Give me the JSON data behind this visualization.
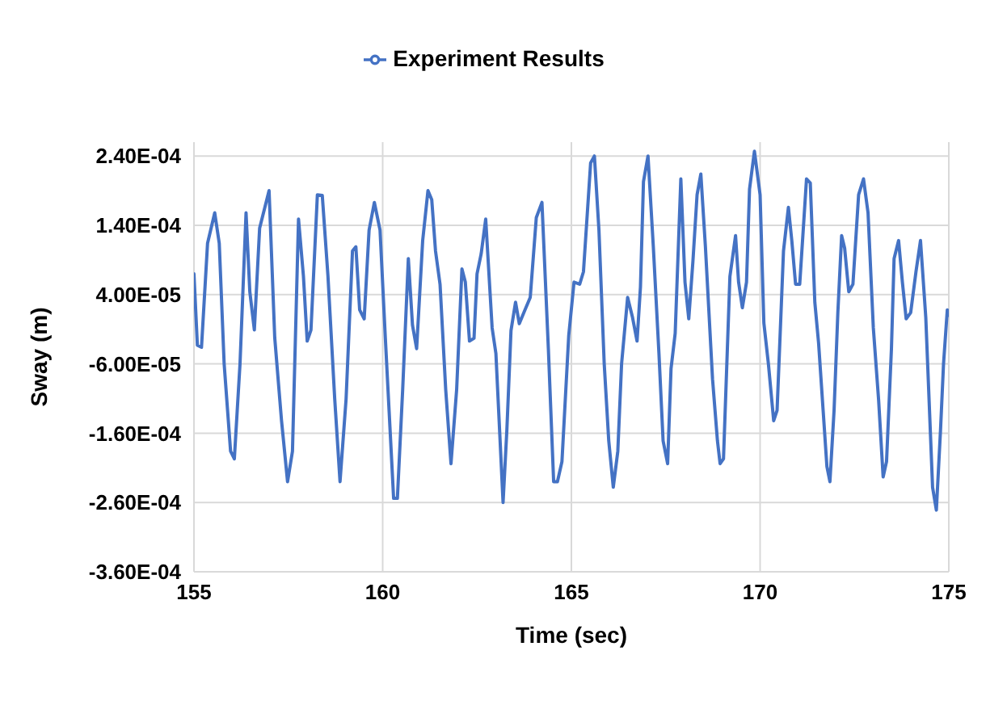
{
  "chart_data": {
    "type": "line",
    "xlabel": "Time (sec)",
    "ylabel": "Sway (m)",
    "xlim": [
      155,
      175
    ],
    "xticks": [
      155,
      160,
      165,
      170,
      175
    ],
    "ylim": [
      -0.00036,
      0.00026
    ],
    "yticks": [
      {
        "value": -0.00036,
        "label": "-3.60E-04"
      },
      {
        "value": -0.00026,
        "label": "-2.60E-04"
      },
      {
        "value": -0.00016,
        "label": "-1.60E-04"
      },
      {
        "value": -6e-05,
        "label": "-6.00E-05"
      },
      {
        "value": 4e-05,
        "label": "4.00E-05"
      },
      {
        "value": 0.00014,
        "label": "1.40E-04"
      },
      {
        "value": 0.00024,
        "label": "2.40E-04"
      }
    ],
    "grid": true,
    "legend": "top",
    "marker": "none",
    "line_style": "solid",
    "series": [
      {
        "name": "Experiment Results",
        "color": "#4472c4",
        "x": [
          155.0,
          155.09,
          155.2,
          155.36,
          155.55,
          155.67,
          155.8,
          155.97,
          156.07,
          156.22,
          156.38,
          156.48,
          156.6,
          156.74,
          156.99,
          157.14,
          157.32,
          157.48,
          157.61,
          157.77,
          157.9,
          158.0,
          158.1,
          158.27,
          158.4,
          158.55,
          158.73,
          158.87,
          159.03,
          159.2,
          159.29,
          159.39,
          159.51,
          159.64,
          159.78,
          159.93,
          160.07,
          160.29,
          160.39,
          160.53,
          160.68,
          160.79,
          160.9,
          161.06,
          161.2,
          161.3,
          161.4,
          161.52,
          161.67,
          161.81,
          161.96,
          162.1,
          162.19,
          162.3,
          162.42,
          162.5,
          162.61,
          162.73,
          162.9,
          163.0,
          163.19,
          163.29,
          163.4,
          163.52,
          163.62,
          163.77,
          163.91,
          164.07,
          164.22,
          164.39,
          164.53,
          164.63,
          164.75,
          164.93,
          165.07,
          165.22,
          165.32,
          165.51,
          165.61,
          165.73,
          165.87,
          165.99,
          166.11,
          166.23,
          166.33,
          166.49,
          166.62,
          166.74,
          166.83,
          166.91,
          167.03,
          167.17,
          167.32,
          167.43,
          167.55,
          167.64,
          167.75,
          167.9,
          168.01,
          168.11,
          168.22,
          168.33,
          168.43,
          168.55,
          168.74,
          168.87,
          168.94,
          169.03,
          169.2,
          169.35,
          169.43,
          169.53,
          169.64,
          169.72,
          169.85,
          170.0,
          170.1,
          170.22,
          170.36,
          170.45,
          170.62,
          170.75,
          170.84,
          170.94,
          171.05,
          171.23,
          171.33,
          171.45,
          171.55,
          171.67,
          171.77,
          171.85,
          171.96,
          172.06,
          172.16,
          172.24,
          172.35,
          172.46,
          172.61,
          172.74,
          172.86,
          173.0,
          173.14,
          173.26,
          173.35,
          173.48,
          173.55,
          173.67,
          173.77,
          173.87,
          173.99,
          174.13,
          174.25,
          174.39,
          174.57,
          174.67,
          174.78,
          174.86,
          174.96,
          175.0
        ],
        "values": [
          7e-05,
          -3.3e-05,
          -3.6e-05,
          0.000114,
          0.000158,
          0.000114,
          -6e-05,
          -0.000186,
          -0.000197,
          -6e-05,
          0.000158,
          4.4e-05,
          -1.1e-05,
          0.000136,
          0.00019,
          -2.2e-05,
          -0.000142,
          -0.00023,
          -0.000186,
          0.000149,
          6.7e-05,
          -2.7e-05,
          -1.1e-05,
          0.000184,
          0.000183,
          6.7e-05,
          -0.000111,
          -0.00023,
          -0.000111,
          0.000103,
          0.000109,
          1.8e-05,
          5e-06,
          0.000133,
          0.000173,
          0.000133,
          -2.2e-05,
          -0.000254,
          -0.000254,
          -9.7e-05,
          9.2e-05,
          -4e-06,
          -3.8e-05,
          0.000118,
          0.00019,
          0.000177,
          0.000103,
          5.5e-05,
          -9.7e-05,
          -0.000204,
          -9.7e-05,
          7.7e-05,
          5.8e-05,
          -2.7e-05,
          -2.3e-05,
          7e-05,
          9.9e-05,
          0.000149,
          -8e-06,
          -4.5e-05,
          -0.00026,
          -0.000156,
          -1.2e-05,
          2.9e-05,
          -2e-06,
          1.8e-05,
          3.6e-05,
          0.000151,
          0.000173,
          -3.8e-05,
          -0.00023,
          -0.00023,
          -0.000201,
          -1.9e-05,
          5.8e-05,
          5.5e-05,
          7.3e-05,
          0.00023,
          0.00024,
          0.000133,
          -6e-05,
          -0.000171,
          -0.000238,
          -0.000186,
          -6e-05,
          3.6e-05,
          7e-06,
          -2.7e-05,
          5.1e-05,
          0.000203,
          0.00024,
          0.00011,
          -4.5e-05,
          -0.000171,
          -0.000204,
          -6.7e-05,
          -1.6e-05,
          0.000207,
          5.8e-05,
          5e-06,
          8.8e-05,
          0.000184,
          0.000214,
          0.00011,
          -8.2e-05,
          -0.000171,
          -0.000204,
          -0.000197,
          6.6e-05,
          0.000125,
          5.8e-05,
          2.1e-05,
          5.8e-05,
          0.000192,
          0.000247,
          0.000184,
          -1e-06,
          -6e-05,
          -0.000142,
          -0.000127,
          0.000103,
          0.000166,
          0.000118,
          5.5e-05,
          5.5e-05,
          0.000207,
          0.000201,
          2.9e-05,
          -3e-05,
          -0.000127,
          -0.000208,
          -0.00023,
          -0.000127,
          1.4e-05,
          0.000125,
          0.000107,
          4.4e-05,
          5.5e-05,
          0.000184,
          0.000207,
          0.000158,
          -8e-06,
          -0.000112,
          -0.000223,
          -0.000201,
          -3.8e-05,
          9.2e-05,
          0.000118,
          5.8e-05,
          5e-06,
          1.4e-05,
          7.3e-05,
          0.000118,
          7e-06,
          -0.000238,
          -0.000271,
          -0.000156,
          -6e-05,
          1.8e-05,
          1e-05
        ]
      }
    ]
  }
}
